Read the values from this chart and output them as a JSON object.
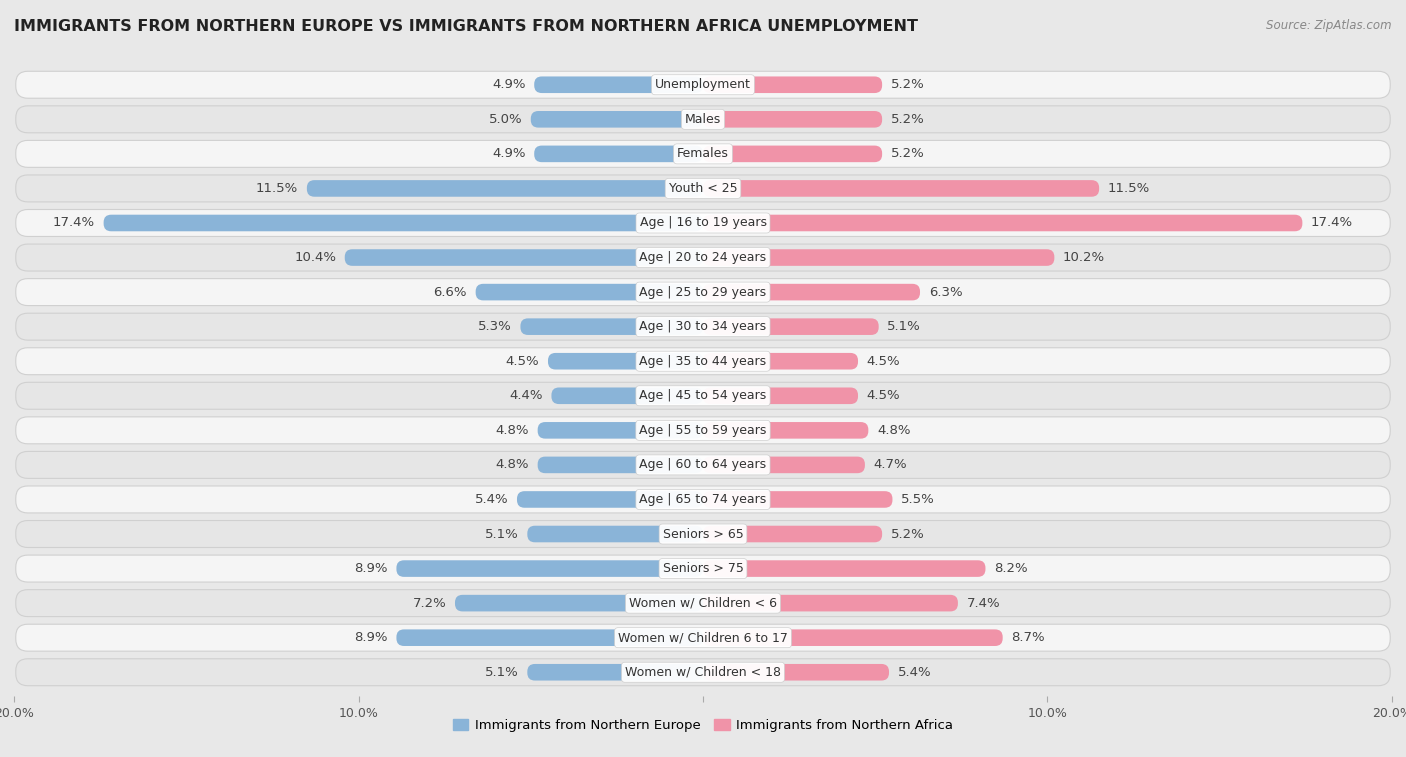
{
  "title": "IMMIGRANTS FROM NORTHERN EUROPE VS IMMIGRANTS FROM NORTHERN AFRICA UNEMPLOYMENT",
  "source": "Source: ZipAtlas.com",
  "categories": [
    "Unemployment",
    "Males",
    "Females",
    "Youth < 25",
    "Age | 16 to 19 years",
    "Age | 20 to 24 years",
    "Age | 25 to 29 years",
    "Age | 30 to 34 years",
    "Age | 35 to 44 years",
    "Age | 45 to 54 years",
    "Age | 55 to 59 years",
    "Age | 60 to 64 years",
    "Age | 65 to 74 years",
    "Seniors > 65",
    "Seniors > 75",
    "Women w/ Children < 6",
    "Women w/ Children 6 to 17",
    "Women w/ Children < 18"
  ],
  "left_values": [
    4.9,
    5.0,
    4.9,
    11.5,
    17.4,
    10.4,
    6.6,
    5.3,
    4.5,
    4.4,
    4.8,
    4.8,
    5.4,
    5.1,
    8.9,
    7.2,
    8.9,
    5.1
  ],
  "right_values": [
    5.2,
    5.2,
    5.2,
    11.5,
    17.4,
    10.2,
    6.3,
    5.1,
    4.5,
    4.5,
    4.8,
    4.7,
    5.5,
    5.2,
    8.2,
    7.4,
    8.7,
    5.4
  ],
  "left_color": "#8ab4d8",
  "right_color": "#f093a8",
  "background_color": "#e8e8e8",
  "row_bg_light": "#f5f5f5",
  "row_bg_dark": "#e6e6e6",
  "row_border": "#d0d0d0",
  "xlim": 20.0,
  "legend_left": "Immigrants from Northern Europe",
  "legend_right": "Immigrants from Northern Africa",
  "value_fontsize": 9.5,
  "label_fontsize": 9.0,
  "title_fontsize": 11.5
}
